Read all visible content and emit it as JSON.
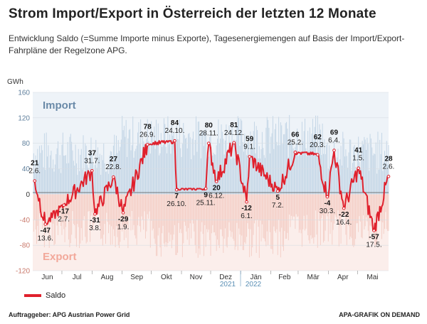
{
  "header": {
    "title": "Strom Import/Export in Österreich der letzten 12 Monate",
    "subtitle": "Entwicklung Saldo (=Summe Importe minus Exporte), Tagesenergiemengen auf Basis der Import/Export-Fahrpläne der Regelzone APG."
  },
  "chart_data": {
    "type": "line",
    "ylabel": "GWh",
    "ylim": [
      -120,
      160
    ],
    "yticks": [
      -120,
      -80,
      -40,
      0,
      40,
      80,
      120,
      160
    ],
    "zone_labels": {
      "import": "Import",
      "export": "Export"
    },
    "months": [
      "Jun",
      "Jul",
      "Aug",
      "Sep",
      "Okt",
      "Nov",
      "Dez",
      "Jän",
      "Feb",
      "Mär",
      "Apr",
      "Mai"
    ],
    "year_labels": [
      "2021",
      "2022"
    ],
    "series": [
      {
        "name": "Saldo",
        "color": "#e0202c"
      }
    ],
    "annotations": [
      {
        "value": "21",
        "date": "2.6."
      },
      {
        "value": "-47",
        "date": "13.6."
      },
      {
        "value": "-17",
        "date": "2.7."
      },
      {
        "value": "37",
        "date": "31.7."
      },
      {
        "value": "-31",
        "date": "3.8."
      },
      {
        "value": "27",
        "date": "22.8."
      },
      {
        "value": "-29",
        "date": "1.9."
      },
      {
        "value": "78",
        "date": "26.9."
      },
      {
        "value": "7",
        "date": "26.10."
      },
      {
        "value": "84",
        "date": "24.10."
      },
      {
        "value": "9",
        "date": "25.11."
      },
      {
        "value": "80",
        "date": "28.11."
      },
      {
        "value": "20",
        "date": "6.12."
      },
      {
        "value": "81",
        "date": "24.12."
      },
      {
        "value": "-12",
        "date": "6.1."
      },
      {
        "value": "59",
        "date": "9.1."
      },
      {
        "value": "5",
        "date": "7.2."
      },
      {
        "value": "66",
        "date": "25.2."
      },
      {
        "value": "-4",
        "date": "30.3."
      },
      {
        "value": "62",
        "date": "20.3."
      },
      {
        "value": "-22",
        "date": "16.4."
      },
      {
        "value": "69",
        "date": "6.4."
      },
      {
        "value": "-57",
        "date": "17.5."
      },
      {
        "value": "41",
        "date": "1.5."
      },
      {
        "value": "28",
        "date": "2.6."
      }
    ]
  },
  "legend": {
    "saldo_label": "Saldo"
  },
  "footer": {
    "client": "Auftraggeber: APG Austrian Power Grid",
    "source": "APA-GRAFIK ON DEMAND"
  }
}
